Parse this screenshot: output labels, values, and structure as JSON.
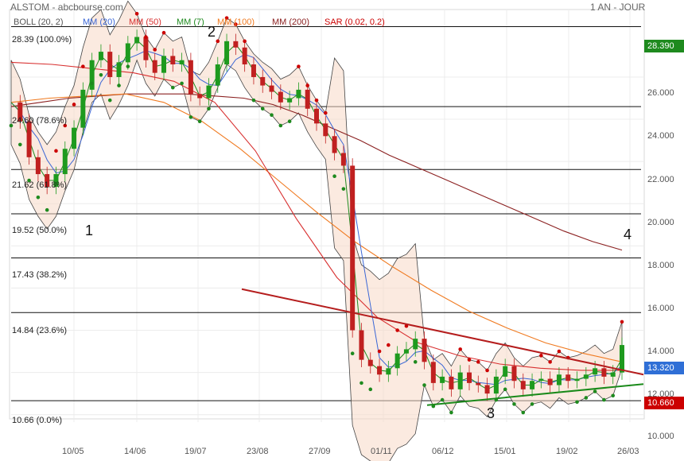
{
  "header": {
    "title": "ALSTOM - abcbourse.com",
    "period": "1 AN - JOUR"
  },
  "indicators": [
    {
      "label": "BOLL (20, 2)",
      "color": "#555555"
    },
    {
      "label": "MM (20)",
      "color": "#3a66d6"
    },
    {
      "label": "MM (50)",
      "color": "#d83030"
    },
    {
      "label": "MM (7)",
      "color": "#1e8a1e"
    },
    {
      "label": "MM (100)",
      "color": "#f07a20"
    },
    {
      "label": "MM (200)",
      "color": "#8b2020"
    },
    {
      "label": "SAR (0.02, 0.2)",
      "color": "#cc0000"
    }
  ],
  "fib_levels": [
    {
      "label": "28.39  (100.0%)",
      "value": 28.39
    },
    {
      "label": "24.60  (78.6%)",
      "value": 24.6
    },
    {
      "label": "21.62  (61.8%)",
      "value": 21.62
    },
    {
      "label": "19.52  (50.0%)",
      "value": 19.52
    },
    {
      "label": "17.43  (38.2%)",
      "value": 17.43
    },
    {
      "label": "14.84  (23.6%)",
      "value": 14.84
    },
    {
      "label": "10.66  (0.0%)",
      "value": 10.66
    }
  ],
  "wave_labels": {
    "w1": "1",
    "w2": "2",
    "w3": "3",
    "w4": "4"
  },
  "price_badges": {
    "high": {
      "text": "28.390",
      "color": "#1e8a1e"
    },
    "last": {
      "text": "13.320",
      "color": "#2f6fd6"
    },
    "low": {
      "text": "10.660",
      "color": "#cc0000"
    }
  },
  "y_ticks": [
    "26.000",
    "24.000",
    "22.000",
    "20.000",
    "18.000",
    "16.000",
    "14.000",
    "12.000",
    "10.000"
  ],
  "x_ticks": [
    "10/05",
    "14/06",
    "19/07",
    "23/08",
    "27/09",
    "01/11",
    "06/12",
    "15/01",
    "19/02",
    "26/03"
  ],
  "chart_data": {
    "type": "line",
    "title": "ALSTOM - abcbourse.com",
    "ylim": [
      9.8,
      29.2
    ],
    "x_ticks": [
      "10/05",
      "14/06",
      "19/07",
      "23/08",
      "27/09",
      "01/11",
      "06/12",
      "15/01",
      "19/02",
      "26/03"
    ],
    "y_ticks": [
      10,
      12,
      14,
      16,
      18,
      20,
      22,
      24,
      26
    ],
    "series": [
      {
        "name": "ALSTOM",
        "values": [
          24.8,
          23.9,
          22.2,
          21.4,
          20.8,
          21.4,
          22.6,
          23.6,
          25.4,
          26.8,
          27.2,
          26.0,
          26.7,
          27.6,
          27.9,
          26.8,
          26.2,
          27.0,
          26.6,
          26.8,
          25.2,
          25.0,
          25.6,
          26.6,
          27.7,
          27.4,
          26.6,
          26.0,
          25.6,
          25.3,
          24.8,
          25.0,
          25.4,
          24.5,
          23.8,
          23.2,
          22.4,
          21.8,
          14.0,
          12.6,
          12.3,
          11.9,
          12.2,
          12.9,
          13.1,
          13.6,
          12.5,
          11.5,
          11.8,
          11.2,
          12.0,
          11.5,
          11.4,
          11.0,
          11.8,
          12.3,
          11.6,
          11.2,
          11.6,
          11.7,
          11.4,
          11.9,
          11.6,
          11.7,
          11.9,
          12.2,
          11.8,
          12.0,
          13.3
        ]
      },
      {
        "name": "MM (200)",
        "values": [
          24.6,
          24.8,
          25.0,
          25.1,
          25.2,
          25.2,
          25.2,
          25.1,
          25.0,
          24.7,
          24.2,
          23.6,
          23.0,
          22.3,
          21.7,
          21.1,
          20.5,
          19.9,
          19.3,
          18.7,
          18.2,
          17.8
        ]
      },
      {
        "name": "MM (100)",
        "values": [
          24.8,
          25.0,
          25.1,
          25.2,
          24.8,
          23.9,
          22.6,
          21.1,
          19.6,
          18.2,
          17.0,
          15.9,
          14.9,
          14.1,
          13.4,
          12.9,
          12.5
        ]
      },
      {
        "name": "MM (50)",
        "values": [
          26.7,
          26.6,
          26.4,
          26.2,
          25.8,
          24.8,
          22.5,
          19.3,
          16.5,
          14.6,
          13.4,
          12.8,
          12.4,
          12.2,
          12.1,
          12.1
        ]
      }
    ],
    "trendlines": [
      {
        "name": "resistance",
        "color": "#b51d1d",
        "x_dates": [
          "23/08",
          "26/03"
        ],
        "y": [
          15.95,
          11.9
        ]
      },
      {
        "name": "support",
        "color": "#1a8a1a",
        "x_dates": [
          "06/12",
          "26/03"
        ],
        "y": [
          10.45,
          11.45
        ]
      }
    ]
  }
}
